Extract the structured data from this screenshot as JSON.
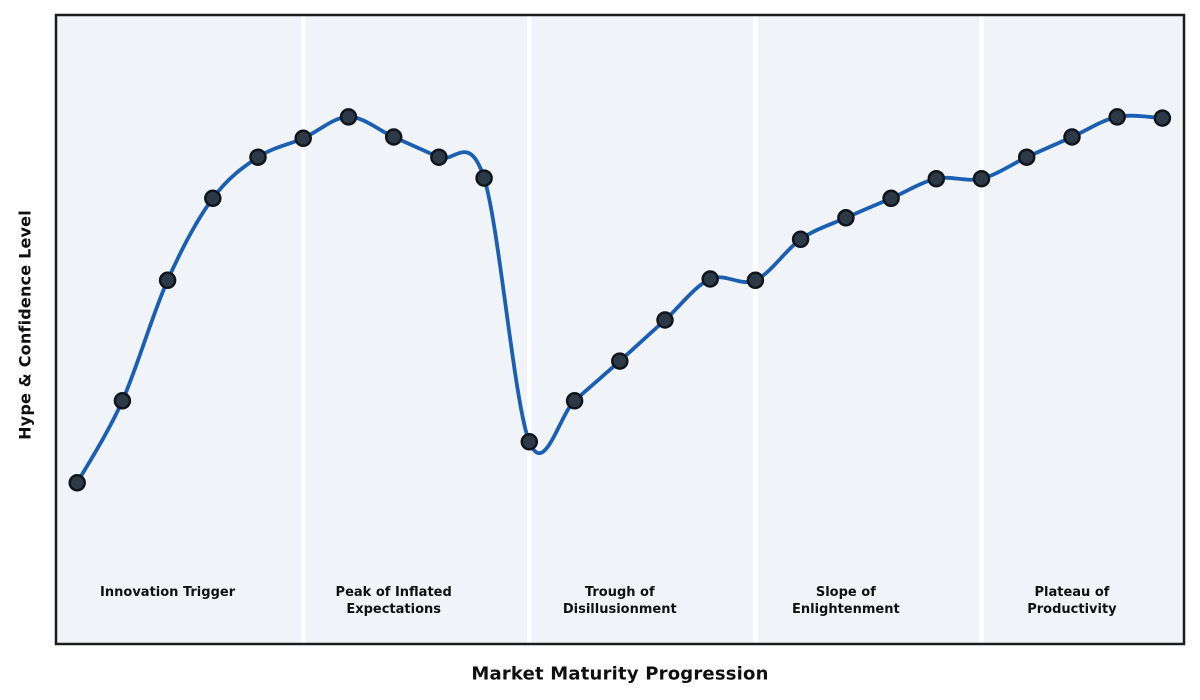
{
  "chart_data": {
    "type": "line",
    "title": "",
    "xlabel": "Market Maturity Progression",
    "ylabel": "Hype & Confidence Level",
    "x": [
      0,
      1,
      2,
      3,
      4,
      5,
      6,
      7,
      8,
      9,
      10,
      11,
      12,
      13,
      14,
      15,
      16,
      17,
      18,
      19,
      20,
      21,
      22,
      23,
      24
    ],
    "series": [
      {
        "name": "Hype & Confidence",
        "values": [
          25.7,
          38.7,
          57.8,
          70.8,
          77.3,
          80.3,
          83.7,
          80.5,
          77.3,
          74.0,
          32.2,
          38.7,
          45.0,
          51.5,
          58.0,
          57.8,
          64.3,
          67.7,
          70.8,
          73.9,
          73.9,
          77.3,
          80.5,
          83.7,
          83.5
        ]
      }
    ],
    "xlim": [
      -0.49,
      24.5
    ],
    "ylim": [
      0,
      100
    ],
    "grid": false,
    "legend": "none",
    "marker": "circle",
    "smooth_curve": true,
    "phase_boundaries_x": [
      5,
      10,
      15,
      20
    ],
    "phases": [
      {
        "label": "Innovation Trigger",
        "center_x": 2
      },
      {
        "label": "Peak of Inflated\nExpectations",
        "center_x": 7
      },
      {
        "label": "Trough of\nDisillusionment",
        "center_x": 12
      },
      {
        "label": "Slope of\nEnlightenment",
        "center_x": 17
      },
      {
        "label": "Plateau of\nProductivity",
        "center_x": 22
      }
    ],
    "colors": {
      "line": "#1a5fb4",
      "marker_fill": "#2c3a48",
      "marker_edge": "#10151c",
      "plot_bg": "#f0f4f8",
      "border": "#1c1c1c",
      "separator": "#ffffff",
      "text": "#111111",
      "figure_bg": "#ffffff"
    }
  }
}
